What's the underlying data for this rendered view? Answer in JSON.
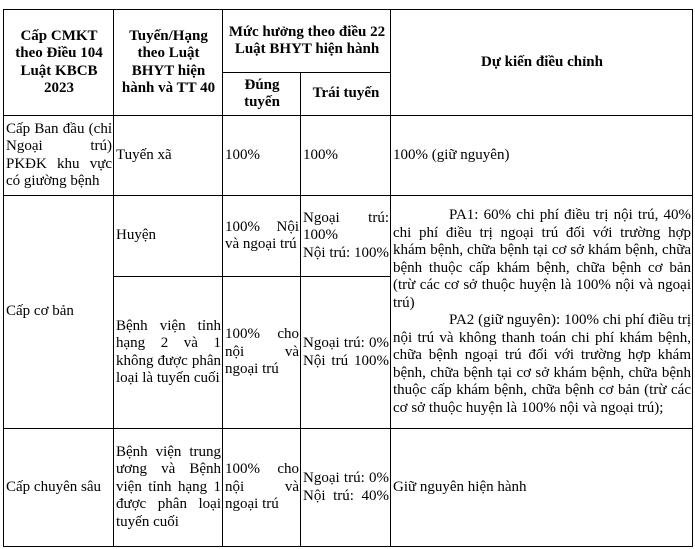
{
  "table": {
    "headers": {
      "col1": "Cấp CMKT theo Điều 104 Luật KBCB 2023",
      "col2": "Tuyến/Hạng theo Luật BHYT hiện hành và TT 40",
      "group": "Mức hưởng theo điều 22 Luật BHYT hiện hành",
      "sub_correct": "Đúng tuyến",
      "sub_wrong": "Trái tuyến",
      "col5": "Dự kiến điều chỉnh"
    },
    "rows": [
      {
        "level": "Cấp Ban đầu (chỉ Ngoại trú) PKĐK khu vực có giường bệnh",
        "route": "Tuyến xã",
        "correct": "100%",
        "wrong": "100%",
        "proposal": "100% (giữ nguyên)"
      },
      {
        "level": "Cấp cơ bản",
        "route": "Huyện",
        "correct": "100% Nội và ngoại trú",
        "wrong_outpatient": "Ngoại trú: 100%",
        "wrong_inpatient": "Nội trú: 100%",
        "proposal_pa1": "PA1: 60% chi phí điều trị nội trú, 40% chi phí điều trị ngoại trú đối với trường hợp khám bệnh, chữa bệnh tại cơ sở khám bệnh, chữa bệnh thuộc cấp khám bệnh, chữa bệnh cơ bản (trừ các cơ sở thuộc huyện là 100% nội và ngoại trú)",
        "proposal_pa2": "PA2 (giữ nguyên): 100% chi phí điều trị nội trú và không thanh toán chi phí khám bệnh, chữa bệnh ngoại trú đối với trường hợp khám bệnh, chữa bệnh tại cơ sở khám bệnh, chữa bệnh thuộc cấp khám bệnh, chữa bệnh cơ bản (trừ các cơ sở thuộc huyện là 100% nội và ngoại trú);"
      },
      {
        "route": "Bệnh viện tỉnh hạng 2 và 1 không được phân loại là tuyến cuối",
        "correct": "100% cho nội và ngoại trú",
        "wrong_outpatient": "Ngoại trú: 0%",
        "wrong_inpatient": "Nội trú 100%"
      },
      {
        "level": "Cấp chuyên sâu",
        "route": "Bệnh viện trung ương và Bệnh viện tỉnh hạng 1 được phân loại tuyến cuối",
        "correct": "100% cho nội và ngoại trú",
        "wrong_outpatient": "Ngoại trú: 0%",
        "wrong_inpatient": "Nội trú: 40%",
        "proposal": "Giữ nguyên hiện hành"
      }
    ]
  }
}
